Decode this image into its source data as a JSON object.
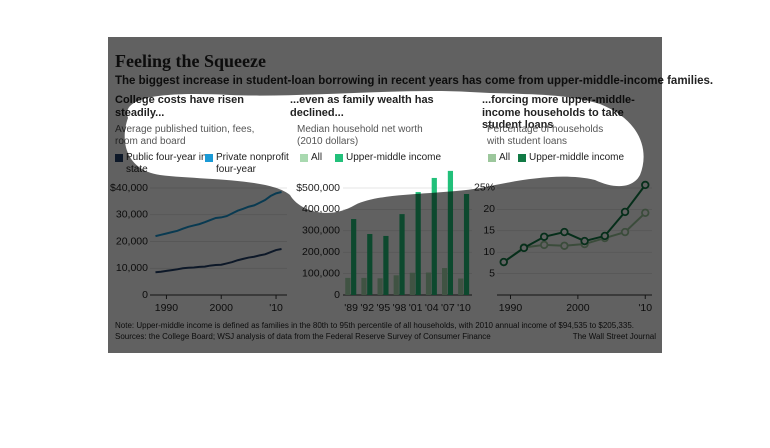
{
  "title": "Feeling the Squeeze",
  "subtitle": "The biggest increase in student-loan borrowing in recent years has come from upper-middle-income families.",
  "note": "Note: Upper-middle income is defined as families in the 80th to 95th percentile of all households, with 2010 annual income of $94,535 to $205,335.",
  "source": "Sources: the College Board; WSJ analysis of data from the Federal Reserve Survey of Consumer Finance",
  "credit": "The Wall Street Journal",
  "chart_data": [
    {
      "type": "line",
      "title": "College costs have risen steadily...",
      "subtitle": "Average published tuition, fees, room and board",
      "x": [
        1988,
        1989,
        1990,
        1991,
        1992,
        1993,
        1994,
        1995,
        1996,
        1997,
        1998,
        1999,
        2000,
        2001,
        2002,
        2003,
        2004,
        2005,
        2006,
        2007,
        2008,
        2009,
        2010,
        2011
      ],
      "xlim": [
        1987,
        2012
      ],
      "xticks": [
        1990,
        2000,
        {
          "value": 2010,
          "label": "'10"
        }
      ],
      "ylim": [
        0,
        40000
      ],
      "yticks": [
        {
          "value": 40000,
          "label": "$40,000"
        },
        {
          "value": 30000,
          "label": "30,000"
        },
        {
          "value": 20000,
          "label": "20,000"
        },
        {
          "value": 10000,
          "label": "10,000"
        },
        0
      ],
      "grid": true,
      "series": [
        {
          "name": "Public four-year in-state",
          "color": "#24416a",
          "values": [
            8500,
            8700,
            9000,
            9300,
            9600,
            10000,
            10200,
            10300,
            10500,
            10600,
            11000,
            11200,
            11300,
            11800,
            12300,
            13000,
            13500,
            14000,
            14300,
            14800,
            15200,
            16000,
            16800,
            17200
          ]
        },
        {
          "name": "Private nonprofit four-year",
          "color": "#1a9ad6",
          "values": [
            22000,
            22500,
            23000,
            23500,
            24000,
            24800,
            25500,
            26000,
            26500,
            27200,
            28000,
            28800,
            29000,
            29500,
            30500,
            31500,
            32200,
            33000,
            33500,
            34500,
            35500,
            37000,
            38000,
            38500
          ]
        }
      ]
    },
    {
      "type": "bar",
      "title": "...even as family wealth has declined...",
      "subtitle": "Median household net worth (2010 dollars)",
      "categories": [
        "'89",
        "'92",
        "'95",
        "'98",
        "'01",
        "'04",
        "'07",
        "'10"
      ],
      "ylim": [
        0,
        600000
      ],
      "yticks": [
        {
          "value": 500000,
          "label": "$500,000"
        },
        {
          "value": 400000,
          "label": "400,000"
        },
        {
          "value": 300000,
          "label": "300,000"
        },
        {
          "value": 200000,
          "label": "200,000"
        },
        {
          "value": 100000,
          "label": "100,000"
        },
        0
      ],
      "grid": true,
      "series": [
        {
          "name": "All",
          "color": "#a9d9b0",
          "values": [
            80000,
            80000,
            78000,
            92000,
            104000,
            105000,
            126000,
            77000
          ]
        },
        {
          "name": "Upper-middle income",
          "color": "#22c07a",
          "values": [
            355000,
            285000,
            276000,
            378000,
            481000,
            547000,
            580000,
            472000
          ]
        }
      ]
    },
    {
      "type": "line",
      "title": "...forcing more upper-middle-income households to take student loans",
      "subtitle": "Percentage of households with student loans",
      "x": [
        1989,
        1992,
        1995,
        1998,
        2001,
        2004,
        2007,
        2010
      ],
      "xlim": [
        1988,
        2011
      ],
      "xticks": [
        1990,
        2000,
        {
          "value": 2010,
          "label": "'10"
        }
      ],
      "ylim": [
        0,
        27
      ],
      "yticks": [
        {
          "value": 25,
          "label": "25%"
        },
        20,
        15,
        10,
        5
      ],
      "grid": true,
      "markers": true,
      "series": [
        {
          "name": "All",
          "color": "#9cc79c",
          "values": [
            7.7,
            11.1,
            11.7,
            11.5,
            11.9,
            13.3,
            14.7,
            19.2
          ]
        },
        {
          "name": "Upper-middle income",
          "color": "#117a45",
          "values": [
            7.7,
            11.0,
            13.6,
            14.7,
            12.6,
            13.8,
            19.4,
            25.7
          ]
        }
      ]
    }
  ]
}
